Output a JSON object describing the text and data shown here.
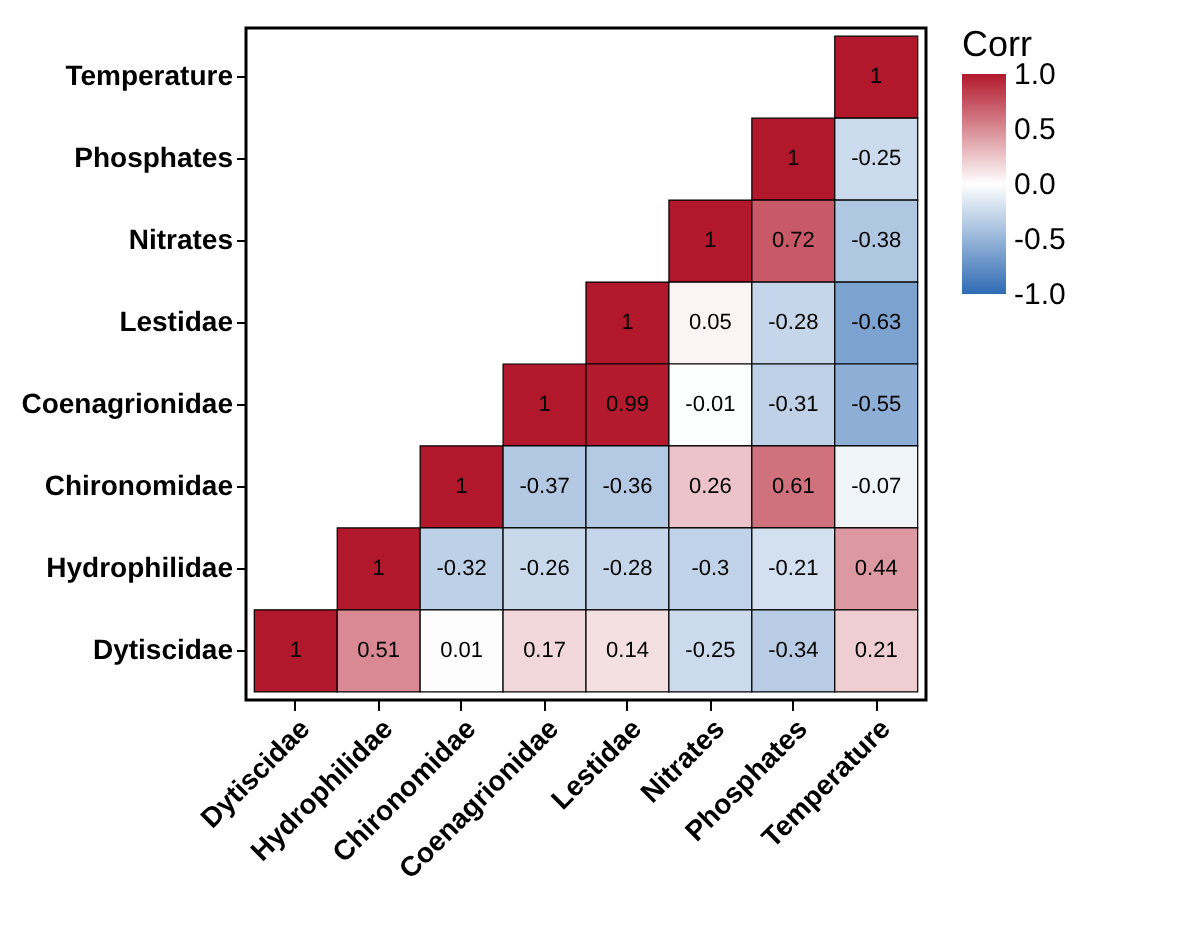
{
  "chart_data": {
    "type": "heatmap",
    "categories": [
      "Dytiscidae",
      "Hydrophilidae",
      "Chironomidae",
      "Coenagrionidae",
      "Lestidae",
      "Nitrates",
      "Phosphates",
      "Temperature"
    ],
    "y_categories": [
      "Temperature",
      "Phosphates",
      "Nitrates",
      "Lestidae",
      "Coenagrionidae",
      "Chironomidae",
      "Hydrophilidae",
      "Dytiscidae"
    ],
    "cells": [
      [
        null,
        null,
        null,
        null,
        null,
        null,
        null,
        1
      ],
      [
        null,
        null,
        null,
        null,
        null,
        null,
        1,
        -0.25
      ],
      [
        null,
        null,
        null,
        null,
        null,
        1,
        0.72,
        -0.38
      ],
      [
        null,
        null,
        null,
        null,
        1,
        0.05,
        -0.28,
        -0.63
      ],
      [
        null,
        null,
        null,
        1,
        0.99,
        -0.01,
        -0.31,
        -0.55
      ],
      [
        null,
        null,
        1,
        -0.37,
        -0.36,
        0.26,
        0.61,
        -0.07
      ],
      [
        null,
        1,
        -0.32,
        -0.26,
        -0.28,
        -0.3,
        -0.21,
        0.44
      ],
      [
        1,
        0.51,
        0.01,
        0.17,
        0.14,
        -0.25,
        -0.34,
        0.21
      ]
    ],
    "legend_title": "Corr",
    "clim": [
      -1,
      1
    ],
    "cticks": [
      {
        "value": 1,
        "label": "1.0"
      },
      {
        "value": 0.5,
        "label": "0.5"
      },
      {
        "value": 0,
        "label": "0.0"
      },
      {
        "value": -0.5,
        "label": "-0.5"
      },
      {
        "value": -1,
        "label": "-1.0"
      }
    ],
    "data_labels": true
  }
}
